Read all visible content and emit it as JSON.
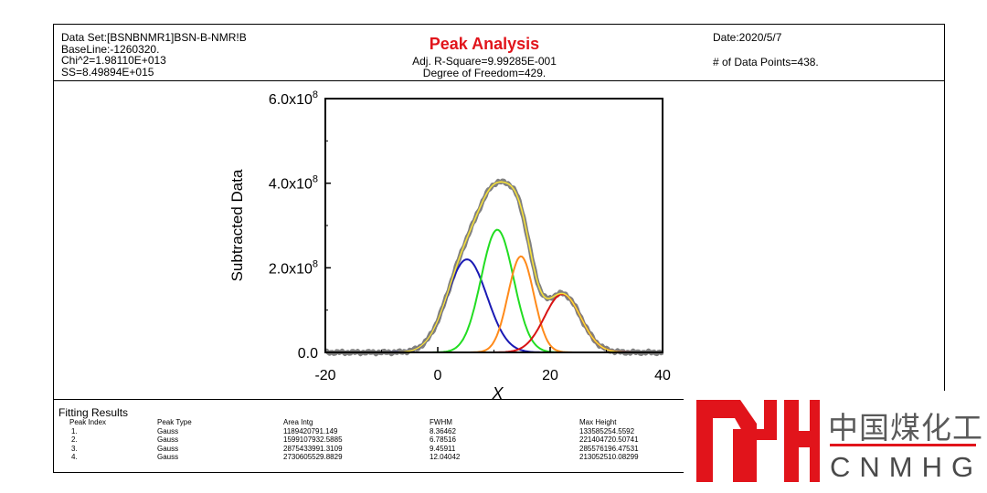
{
  "report": {
    "dataset": "Data Set:[BSNBNMR1]BSN-B-NMR!B",
    "baseline": "BaseLine:-1260320.",
    "chi2": "Chi^2=1.98110E+013",
    "ss": "SS=8.49894E+015",
    "title": "Peak Analysis",
    "adj_r_square": "Adj. R-Square=9.99285E-001",
    "dof": "Degree of Freedom=429.",
    "date": "Date:2020/5/7",
    "points": "# of Data Points=438."
  },
  "chart_data": {
    "type": "line",
    "title": "",
    "xlabel": "X",
    "ylabel": "Subtracted Data",
    "xlim": [
      -20,
      40
    ],
    "ylim": [
      0,
      600000000.0
    ],
    "xticks": [
      -20,
      0,
      20,
      40
    ],
    "xtick_labels": [
      "-20",
      "0",
      "20",
      "40"
    ],
    "yticks": [
      0,
      200000000.0,
      400000000.0,
      600000000.0
    ],
    "ytick_labels": [
      {
        "mantissa": "0.0",
        "exp": ""
      },
      {
        "mantissa": "2.0x10",
        "exp": "8"
      },
      {
        "mantissa": "4.0x10",
        "exp": "8"
      },
      {
        "mantissa": "6.0x10",
        "exp": "8"
      }
    ],
    "peaks": [
      {
        "center": 5.2,
        "height": 220000000.0,
        "fwhm": 8.36,
        "color": "#1a1ab4"
      },
      {
        "center": 10.6,
        "height": 290000000.0,
        "fwhm": 6.79,
        "color": "#22dd22"
      },
      {
        "center": 14.8,
        "height": 227000000.0,
        "fwhm": 5.4,
        "color": "#ff8a1a"
      },
      {
        "center": 22.2,
        "height": 138000000.0,
        "fwhm": 7.6,
        "color": "#d81414"
      }
    ],
    "data_color": "#808080",
    "fit_color": "#f5e03a"
  },
  "fitting_results": {
    "title": "Fitting Results",
    "columns": [
      "Peak Index",
      "Peak Type",
      "Area Intg",
      "FWHM",
      "Max Height"
    ],
    "rows": [
      [
        "1.",
        "Gauss",
        "1189420791.149",
        "8.36462",
        "133585254.5592"
      ],
      [
        "2.",
        "Gauss",
        "1599107932.5885",
        "6.78516",
        "221404720.50741"
      ],
      [
        "3.",
        "Gauss",
        "2875433991.3109",
        "9.45911",
        "285576196.47531"
      ],
      [
        "4.",
        "Gauss",
        "2730605529.8829",
        "12.04042",
        "213052510.08299"
      ]
    ]
  },
  "logo": {
    "cn": "中国煤化工",
    "en": "CNMHG",
    "color": "#e1141b"
  }
}
